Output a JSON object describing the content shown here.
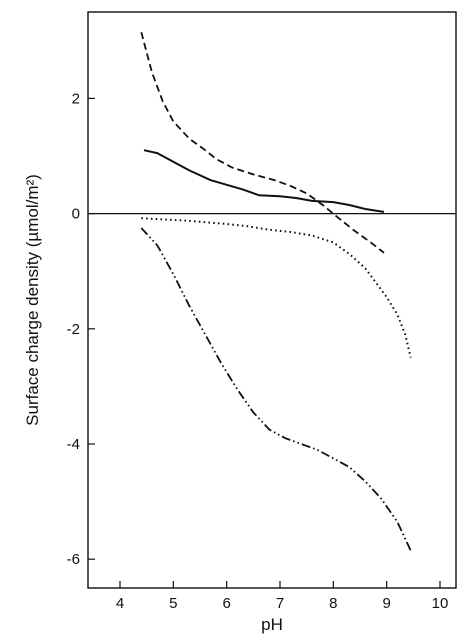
{
  "chart_data": {
    "type": "line",
    "title": "",
    "xlabel": "pH",
    "ylabel": "Surface charge density (µmol/m²)",
    "xlim": [
      3.4,
      10.3
    ],
    "ylim": [
      -6.5,
      3.5
    ],
    "xticks": [
      4,
      5,
      6,
      7,
      8,
      9,
      10
    ],
    "yticks": [
      2,
      0,
      -2,
      -4,
      -6
    ],
    "xtick_labels": [
      "4",
      "5",
      "6",
      "7",
      "8",
      "9",
      "10"
    ],
    "ytick_labels": [
      "2",
      "0",
      "-2",
      "-4",
      "-6"
    ],
    "grid": false,
    "legend": "none",
    "reference_line_y": 0,
    "series": [
      {
        "style": "solid",
        "x": [
          4.45,
          4.7,
          5.0,
          5.3,
          5.7,
          6.0,
          6.3,
          6.6,
          7.0,
          7.3,
          7.6,
          8.0,
          8.3,
          8.6,
          8.95
        ],
        "y": [
          1.1,
          1.05,
          0.9,
          0.75,
          0.58,
          0.5,
          0.42,
          0.32,
          0.3,
          0.27,
          0.22,
          0.2,
          0.15,
          0.08,
          0.03
        ]
      },
      {
        "style": "dashed",
        "x": [
          4.4,
          4.6,
          4.8,
          5.0,
          5.3,
          5.6,
          5.8,
          6.1,
          6.5,
          6.9,
          7.2,
          7.5,
          7.8,
          8.1,
          8.4,
          8.7,
          8.95
        ],
        "y": [
          3.15,
          2.45,
          1.95,
          1.6,
          1.3,
          1.1,
          0.95,
          0.8,
          0.68,
          0.58,
          0.48,
          0.35,
          0.15,
          -0.08,
          -0.3,
          -0.5,
          -0.68
        ]
      },
      {
        "style": "dotted",
        "x": [
          4.4,
          4.8,
          5.2,
          5.6,
          6.0,
          6.4,
          6.8,
          7.2,
          7.6,
          8.0,
          8.3,
          8.6,
          8.8,
          9.0,
          9.2,
          9.35,
          9.45
        ],
        "y": [
          -0.08,
          -0.1,
          -0.12,
          -0.15,
          -0.18,
          -0.22,
          -0.28,
          -0.32,
          -0.38,
          -0.5,
          -0.7,
          -0.95,
          -1.2,
          -1.45,
          -1.75,
          -2.1,
          -2.5
        ]
      },
      {
        "style": "dash-dot-dot",
        "x": [
          4.4,
          4.7,
          5.0,
          5.3,
          5.6,
          5.9,
          6.2,
          6.5,
          6.8,
          7.1,
          7.4,
          7.7,
          8.0,
          8.3,
          8.6,
          8.9,
          9.2,
          9.45
        ],
        "y": [
          -0.25,
          -0.55,
          -1.05,
          -1.6,
          -2.1,
          -2.6,
          -3.05,
          -3.45,
          -3.75,
          -3.9,
          -4.0,
          -4.1,
          -4.25,
          -4.4,
          -4.65,
          -4.95,
          -5.35,
          -5.85
        ]
      }
    ]
  }
}
